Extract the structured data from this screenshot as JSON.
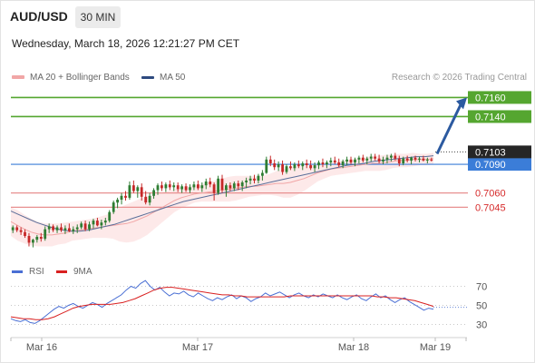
{
  "header": {
    "symbol": "AUD/USD",
    "timeframe": "30 MIN",
    "datetime": "Wednesday, March 18, 2026 12:21:27 PM CET"
  },
  "legend": {
    "ma20_label": "MA 20 + Bollinger Bands",
    "ma50_label": "MA 50",
    "credit": "Research © 2026 Trading Central"
  },
  "rsi_legend": {
    "rsi_label": "RSI",
    "ma_label": "9MA"
  },
  "colors": {
    "candle_up": "#2e7d32",
    "candle_down": "#c62828",
    "bollinger_fill": "#fde4e4",
    "ma20": "#f1a6a6",
    "ma50": "#5a6e99",
    "resistance": "#55a630",
    "pivot": "#3b7dd8",
    "support": "#e89090",
    "rsi_line": "#4a6fd4",
    "rsi_ma": "#d92020",
    "projection_arrow": "#2c5aa0"
  },
  "chart_data": [
    {
      "type": "candlestick",
      "title": "AUD/USD",
      "timeframe": "30 MIN",
      "x_tick_labels": [
        "Mar 16",
        "Mar 17",
        "Mar 18",
        "Mar 19"
      ],
      "y_range": [
        0.6995,
        0.7168
      ],
      "current_price": "0.7103",
      "key_levels": [
        {
          "label": "0.7160",
          "value": 0.716,
          "kind": "resistance"
        },
        {
          "label": "0.7140",
          "value": 0.714,
          "kind": "resistance"
        },
        {
          "label": "0.7090",
          "value": 0.709,
          "kind": "pivot"
        },
        {
          "label": "0.7060",
          "value": 0.706,
          "kind": "support"
        },
        {
          "label": "0.7045",
          "value": 0.7045,
          "kind": "support"
        }
      ],
      "projection": {
        "from": 0.7101,
        "to": 0.716
      },
      "candles": [
        [
          0.7021,
          0.7026,
          0.7018,
          0.7024
        ],
        [
          0.7024,
          0.7026,
          0.7019,
          0.7021
        ],
        [
          0.7021,
          0.7024,
          0.7016,
          0.7019
        ],
        [
          0.7019,
          0.7022,
          0.7013,
          0.7015
        ],
        [
          0.7015,
          0.7018,
          0.7004,
          0.7008
        ],
        [
          0.7008,
          0.7012,
          0.7003,
          0.7011
        ],
        [
          0.7011,
          0.7016,
          0.7008,
          0.7014
        ],
        [
          0.7014,
          0.7018,
          0.7009,
          0.7012
        ],
        [
          0.7012,
          0.7025,
          0.701,
          0.7022
        ],
        [
          0.7022,
          0.7028,
          0.7018,
          0.7025
        ],
        [
          0.7025,
          0.7027,
          0.7019,
          0.7021
        ],
        [
          0.7021,
          0.7026,
          0.7018,
          0.7024
        ],
        [
          0.7024,
          0.7028,
          0.7019,
          0.7021
        ],
        [
          0.7021,
          0.7026,
          0.7017,
          0.7023
        ],
        [
          0.7023,
          0.7028,
          0.7019,
          0.702
        ],
        [
          0.702,
          0.7025,
          0.7017,
          0.7022
        ],
        [
          0.7022,
          0.7027,
          0.7018,
          0.7024
        ],
        [
          0.7024,
          0.703,
          0.7022,
          0.7028
        ],
        [
          0.7028,
          0.7031,
          0.702,
          0.7022
        ],
        [
          0.7022,
          0.703,
          0.702,
          0.7027
        ],
        [
          0.7027,
          0.7033,
          0.7023,
          0.7031
        ],
        [
          0.7031,
          0.7034,
          0.7025,
          0.7026
        ],
        [
          0.7026,
          0.7032,
          0.7022,
          0.7029
        ],
        [
          0.7029,
          0.7034,
          0.7026,
          0.7031
        ],
        [
          0.7031,
          0.7042,
          0.7029,
          0.704
        ],
        [
          0.704,
          0.7052,
          0.7038,
          0.705
        ],
        [
          0.705,
          0.7055,
          0.7044,
          0.7053
        ],
        [
          0.7053,
          0.706,
          0.7048,
          0.7057
        ],
        [
          0.7057,
          0.7062,
          0.7052,
          0.7055
        ],
        [
          0.7055,
          0.7072,
          0.7053,
          0.7068
        ],
        [
          0.7068,
          0.7073,
          0.706,
          0.7062
        ],
        [
          0.7062,
          0.7068,
          0.7055,
          0.7066
        ],
        [
          0.7066,
          0.707,
          0.7052,
          0.7056
        ],
        [
          0.7056,
          0.7062,
          0.7048,
          0.705
        ],
        [
          0.705,
          0.706,
          0.7047,
          0.7057
        ],
        [
          0.7057,
          0.7065,
          0.7054,
          0.7063
        ],
        [
          0.7063,
          0.707,
          0.7058,
          0.7068
        ],
        [
          0.7068,
          0.7072,
          0.7062,
          0.7065
        ],
        [
          0.7065,
          0.7071,
          0.7061,
          0.7069
        ],
        [
          0.7069,
          0.7073,
          0.7063,
          0.7066
        ],
        [
          0.7066,
          0.7071,
          0.7062,
          0.7068
        ],
        [
          0.7068,
          0.7071,
          0.7061,
          0.7064
        ],
        [
          0.7064,
          0.7069,
          0.706,
          0.7067
        ],
        [
          0.7067,
          0.707,
          0.7061,
          0.7063
        ],
        [
          0.7063,
          0.7069,
          0.706,
          0.7066
        ],
        [
          0.7066,
          0.7072,
          0.7063,
          0.7069
        ],
        [
          0.7069,
          0.7073,
          0.7063,
          0.7065
        ],
        [
          0.7065,
          0.7071,
          0.7061,
          0.7068
        ],
        [
          0.7068,
          0.7075,
          0.7064,
          0.7072
        ],
        [
          0.7072,
          0.7076,
          0.7066,
          0.7069
        ],
        [
          0.7069,
          0.7071,
          0.7052,
          0.706
        ],
        [
          0.706,
          0.7078,
          0.7058,
          0.7075
        ],
        [
          0.7075,
          0.7079,
          0.706,
          0.7063
        ],
        [
          0.7063,
          0.707,
          0.7056,
          0.7068
        ],
        [
          0.7068,
          0.7071,
          0.7062,
          0.7065
        ],
        [
          0.7065,
          0.7072,
          0.7062,
          0.707
        ],
        [
          0.707,
          0.7073,
          0.7063,
          0.7067
        ],
        [
          0.7067,
          0.7073,
          0.7062,
          0.7071
        ],
        [
          0.7071,
          0.7076,
          0.7065,
          0.7073
        ],
        [
          0.7073,
          0.7078,
          0.7069,
          0.7075
        ],
        [
          0.7075,
          0.7079,
          0.707,
          0.7073
        ],
        [
          0.7073,
          0.708,
          0.707,
          0.7078
        ],
        [
          0.7078,
          0.7084,
          0.7073,
          0.7081
        ],
        [
          0.7081,
          0.7098,
          0.708,
          0.7095
        ],
        [
          0.7095,
          0.7099,
          0.7088,
          0.7091
        ],
        [
          0.7091,
          0.7095,
          0.7084,
          0.7087
        ],
        [
          0.7087,
          0.7093,
          0.7083,
          0.709
        ],
        [
          0.709,
          0.7094,
          0.7079,
          0.7082
        ],
        [
          0.7082,
          0.709,
          0.708,
          0.7088
        ],
        [
          0.7088,
          0.7093,
          0.7084,
          0.7086
        ],
        [
          0.7086,
          0.7092,
          0.7083,
          0.709
        ],
        [
          0.709,
          0.7094,
          0.7086,
          0.7088
        ],
        [
          0.7088,
          0.7093,
          0.7084,
          0.7091
        ],
        [
          0.7091,
          0.7095,
          0.7086,
          0.7089
        ],
        [
          0.7089,
          0.7094,
          0.7084,
          0.7086
        ],
        [
          0.7086,
          0.7092,
          0.7082,
          0.7089
        ],
        [
          0.7089,
          0.7094,
          0.7085,
          0.7092
        ],
        [
          0.7092,
          0.7096,
          0.7087,
          0.709
        ],
        [
          0.709,
          0.7094,
          0.7086,
          0.7092
        ],
        [
          0.7092,
          0.7097,
          0.7088,
          0.7094
        ],
        [
          0.7094,
          0.7098,
          0.709,
          0.7092
        ],
        [
          0.7092,
          0.7096,
          0.7087,
          0.7089
        ],
        [
          0.7089,
          0.7095,
          0.7086,
          0.7093
        ],
        [
          0.7093,
          0.7098,
          0.7089,
          0.7095
        ],
        [
          0.7095,
          0.7098,
          0.709,
          0.7092
        ],
        [
          0.7092,
          0.7097,
          0.7088,
          0.7095
        ],
        [
          0.7095,
          0.7099,
          0.7091,
          0.7097
        ],
        [
          0.7097,
          0.71,
          0.7092,
          0.7094
        ],
        [
          0.7094,
          0.7098,
          0.709,
          0.7096
        ],
        [
          0.7096,
          0.7101,
          0.7093,
          0.7098
        ],
        [
          0.7098,
          0.7101,
          0.7094,
          0.7096
        ],
        [
          0.7096,
          0.71,
          0.7091,
          0.7093
        ],
        [
          0.7093,
          0.7098,
          0.709,
          0.7095
        ],
        [
          0.7095,
          0.71,
          0.7091,
          0.7097
        ],
        [
          0.7097,
          0.7101,
          0.7093,
          0.7099
        ],
        [
          0.7099,
          0.7102,
          0.7094,
          0.7096
        ],
        [
          0.7096,
          0.7099,
          0.7088,
          0.7091
        ],
        [
          0.7091,
          0.7098,
          0.7089,
          0.7096
        ],
        [
          0.7096,
          0.7099,
          0.7092,
          0.7094
        ],
        [
          0.7094,
          0.7098,
          0.709,
          0.7097
        ],
        [
          0.7097,
          0.7099,
          0.7093,
          0.7095
        ],
        [
          0.7095,
          0.7098,
          0.7092,
          0.7096
        ],
        [
          0.7096,
          0.7099,
          0.7093,
          0.7094
        ],
        [
          0.7094,
          0.7097,
          0.7091,
          0.7095
        ],
        [
          0.7095,
          0.7097,
          0.7093,
          0.7094
        ]
      ],
      "ma20": [
        0.703,
        0.7026,
        0.7022,
        0.7019,
        0.7017,
        0.7016,
        0.7016,
        0.7017,
        0.7018,
        0.702,
        0.7021,
        0.7022,
        0.7023,
        0.7024,
        0.7025,
        0.7026,
        0.7027,
        0.7028,
        0.703,
        0.7033,
        0.7036,
        0.704,
        0.7044,
        0.7048,
        0.7052,
        0.7055,
        0.7057,
        0.7059,
        0.706,
        0.7061,
        0.7062,
        0.7063,
        0.7064,
        0.7065,
        0.7066,
        0.7067,
        0.7067,
        0.7068,
        0.7069,
        0.707,
        0.707,
        0.7071,
        0.7073,
        0.7075,
        0.7078,
        0.7081,
        0.7083,
        0.7085,
        0.7086,
        0.7087,
        0.7088,
        0.7089,
        0.709,
        0.7091,
        0.7091,
        0.7092,
        0.7093,
        0.7094,
        0.7094,
        0.7095,
        0.7095,
        0.7095,
        0.7096
      ],
      "bollinger_half_width": [
        0.0015,
        0.0016,
        0.0015,
        0.0014,
        0.0013,
        0.0012,
        0.0012,
        0.0011,
        0.0011,
        0.001,
        0.001,
        0.001,
        0.001,
        0.0011,
        0.0012,
        0.0014,
        0.0018,
        0.002,
        0.0021,
        0.0021,
        0.002,
        0.0018,
        0.0016,
        0.0014,
        0.0012,
        0.0011,
        0.001,
        0.0009,
        0.0009,
        0.001,
        0.0011,
        0.0012,
        0.0013,
        0.0013,
        0.0012,
        0.0011,
        0.001,
        0.001,
        0.0011,
        0.0013,
        0.0015,
        0.0016,
        0.0015,
        0.0013,
        0.0011,
        0.0009,
        0.0008,
        0.0007,
        0.0007,
        0.0007,
        0.0007,
        0.0007,
        0.0007,
        0.0008,
        0.0008,
        0.0008,
        0.0007,
        0.0007,
        0.0007,
        0.0007,
        0.0006,
        0.0006,
        0.0006
      ],
      "ma50": [
        0.7041,
        0.7037,
        0.7033,
        0.7029,
        0.7026,
        0.7023,
        0.7021,
        0.702,
        0.702,
        0.7021,
        0.7023,
        0.7025,
        0.7027,
        0.703,
        0.7033,
        0.7036,
        0.7039,
        0.7042,
        0.7045,
        0.7048,
        0.7051,
        0.7053,
        0.7055,
        0.7057,
        0.7059,
        0.7061,
        0.7063,
        0.7065,
        0.7067,
        0.7069,
        0.7071,
        0.7073,
        0.7075,
        0.7077,
        0.7079,
        0.7081,
        0.7083,
        0.7085,
        0.7087,
        0.7089,
        0.709,
        0.7091,
        0.7093,
        0.7094,
        0.7095,
        0.7096,
        0.7097,
        0.7098,
        0.7098,
        0.7099
      ]
    },
    {
      "type": "line",
      "title": "RSI",
      "y_tick_labels": [
        "70",
        "50",
        "30"
      ],
      "y_range": [
        20,
        80
      ],
      "series": [
        {
          "name": "RSI",
          "values": [
            36,
            34,
            33,
            35,
            32,
            31,
            34,
            38,
            42,
            46,
            49,
            47,
            50,
            52,
            49,
            47,
            50,
            53,
            51,
            48,
            52,
            55,
            58,
            61,
            66,
            70,
            68,
            73,
            76,
            70,
            66,
            69,
            64,
            60,
            63,
            62,
            65,
            61,
            59,
            63,
            60,
            57,
            55,
            58,
            56,
            59,
            61,
            57,
            60,
            58,
            54,
            57,
            59,
            63,
            60,
            62,
            64,
            61,
            58,
            61,
            63,
            60,
            58,
            61,
            59,
            62,
            60,
            58,
            61,
            58,
            56,
            59,
            61,
            57,
            55,
            59,
            62,
            58,
            60,
            56,
            53,
            56,
            58,
            54,
            51,
            48,
            45,
            47,
            46
          ]
        },
        {
          "name": "9MA",
          "values": [
            38,
            37,
            36,
            36,
            35,
            35,
            36,
            38,
            41,
            44,
            47,
            49,
            50,
            51,
            51,
            51,
            51,
            52,
            53,
            55,
            57,
            60,
            63,
            66,
            68,
            69,
            69,
            68,
            67,
            66,
            65,
            64,
            63,
            62,
            61,
            61,
            60,
            60,
            59,
            59,
            59,
            59,
            59,
            59,
            59,
            60,
            60,
            60,
            60,
            60,
            60,
            60,
            60,
            60,
            60,
            60,
            60,
            60,
            60,
            59,
            59,
            58,
            58,
            57,
            56,
            55,
            53,
            51,
            49
          ]
        }
      ]
    }
  ]
}
